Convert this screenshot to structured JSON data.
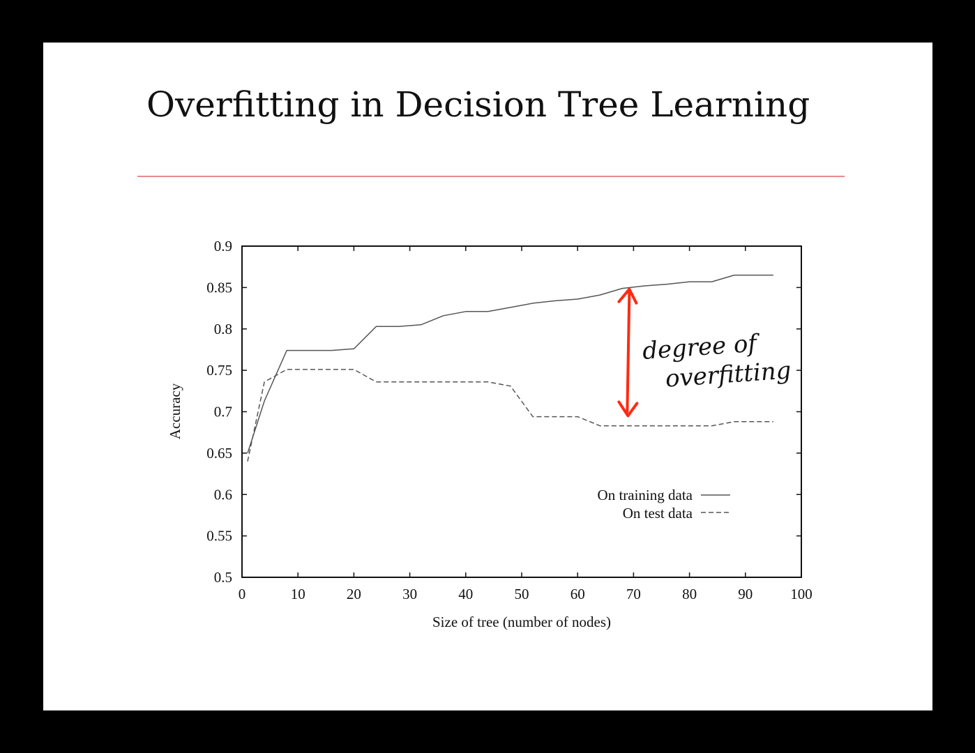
{
  "slide": {
    "title": "Overfitting in Decision Tree Learning"
  },
  "colors": {
    "background": "#000000",
    "slide": "#ffffff",
    "title_rule": "#e88a8a",
    "annotation": "#ff2a12",
    "series": "#555555"
  },
  "chart_data": {
    "type": "line",
    "title": "",
    "xlabel": "Size of tree (number of nodes)",
    "ylabel": "Accuracy",
    "xlim": [
      0,
      100
    ],
    "ylim": [
      0.5,
      0.9
    ],
    "xticks": [
      0,
      10,
      20,
      30,
      40,
      50,
      60,
      70,
      80,
      90,
      100
    ],
    "yticks": [
      0.5,
      0.55,
      0.6,
      0.65,
      0.7,
      0.75,
      0.8,
      0.85,
      0.9
    ],
    "xtick_labels": [
      "0",
      "10",
      "20",
      "30",
      "40",
      "50",
      "60",
      "70",
      "80",
      "90",
      "100"
    ],
    "ytick_labels": [
      "0.5",
      "0.55",
      "0.6",
      "0.65",
      "0.7",
      "0.75",
      "0.8",
      "0.85",
      "0.9"
    ],
    "grid": false,
    "legend_position": "right-center",
    "series": [
      {
        "name": "On training data",
        "style": "solid",
        "x": [
          1,
          4,
          8,
          12,
          16,
          20,
          24,
          28,
          32,
          36,
          40,
          44,
          48,
          52,
          56,
          60,
          64,
          68,
          72,
          76,
          80,
          84,
          88,
          92,
          95
        ],
        "y": [
          0.65,
          0.713,
          0.774,
          0.774,
          0.774,
          0.776,
          0.803,
          0.803,
          0.805,
          0.816,
          0.821,
          0.821,
          0.826,
          0.831,
          0.834,
          0.836,
          0.841,
          0.849,
          0.852,
          0.854,
          0.857,
          0.857,
          0.865,
          0.865,
          0.865
        ]
      },
      {
        "name": "On test data",
        "style": "dashed",
        "x": [
          1,
          4,
          8,
          12,
          16,
          20,
          24,
          28,
          32,
          36,
          40,
          44,
          48,
          52,
          56,
          60,
          64,
          68,
          72,
          76,
          80,
          84,
          88,
          92,
          95
        ],
        "y": [
          0.64,
          0.736,
          0.751,
          0.751,
          0.751,
          0.751,
          0.736,
          0.736,
          0.736,
          0.736,
          0.736,
          0.736,
          0.731,
          0.694,
          0.694,
          0.694,
          0.683,
          0.683,
          0.683,
          0.683,
          0.683,
          0.683,
          0.688,
          0.688,
          0.688
        ]
      }
    ],
    "annotation": {
      "text": "degree of overfitting",
      "arrow_x": 69,
      "arrow_y_range": [
        0.695,
        0.848
      ]
    }
  }
}
